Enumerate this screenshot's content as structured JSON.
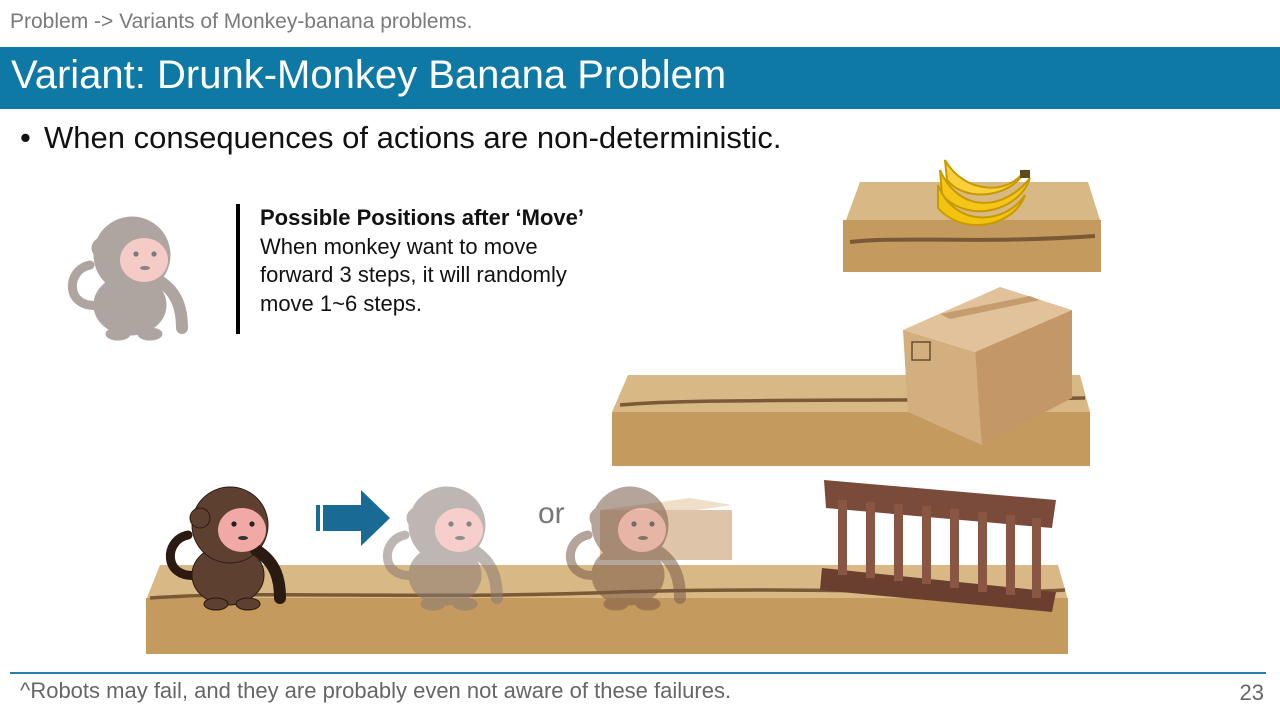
{
  "breadcrumb": "Problem -> Variants of Monkey-banana problems.",
  "title": "Variant: Drunk-Monkey Banana Problem",
  "bullet": "When consequences of actions are non-deterministic.",
  "callout": {
    "heading": "Possible Positions after ‘Move’",
    "line1": "When monkey want to move",
    "line2": "forward 3 steps, it will randomly",
    "line3": "move 1~6 steps."
  },
  "or_label": "or",
  "footnote": "^Robots may fail, and they are probably even not aware of these failures.",
  "page_number": "23",
  "colors": {
    "title_bar": "#0e79a4",
    "wood": "#c9a46a",
    "monkey_brown": "#6b4a3a",
    "monkey_face": "#f0a9a4",
    "arrow": "#1a6a96"
  },
  "icons": [
    "monkey-icon",
    "banana-icon",
    "box-icon",
    "ladder-icon",
    "arrow-right-icon"
  ]
}
